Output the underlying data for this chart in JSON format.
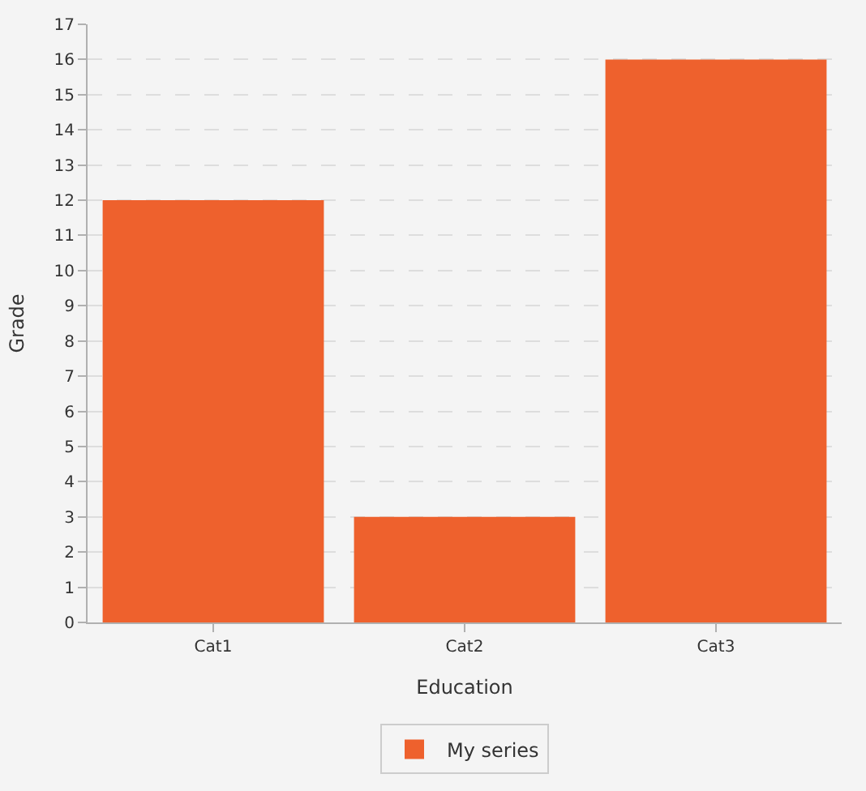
{
  "chart_data": {
    "type": "bar",
    "xlabel": "Education",
    "ylabel": "Grade",
    "categories": [
      "Cat1",
      "Cat2",
      "Cat3"
    ],
    "series": [
      {
        "name": "My series",
        "color": "#ee612d",
        "values": [
          12,
          3,
          16
        ]
      }
    ],
    "ylim": [
      0,
      17
    ],
    "yticks": [
      0,
      1,
      2,
      3,
      4,
      5,
      6,
      7,
      8,
      9,
      10,
      11,
      12,
      13,
      14,
      15,
      16,
      17
    ],
    "grid": "y",
    "legend": "bottom"
  }
}
